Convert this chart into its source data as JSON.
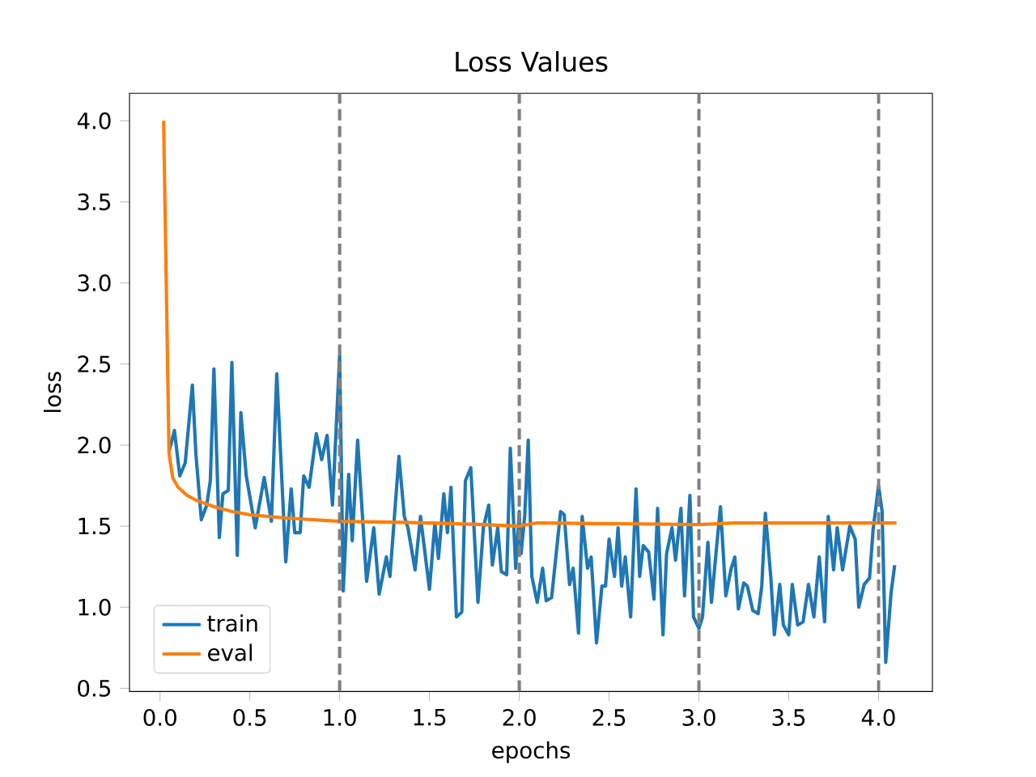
{
  "chart_data": {
    "type": "line",
    "title": "Loss Values",
    "xlabel": "epochs",
    "ylabel": "loss",
    "xlim": [
      -0.17,
      4.3
    ],
    "ylim": [
      0.48,
      4.17
    ],
    "xticks": [
      {
        "value": 0,
        "label": "0.0"
      },
      {
        "value": 0.5,
        "label": "0.5"
      },
      {
        "value": 1,
        "label": "1.0"
      },
      {
        "value": 1.5,
        "label": "1.5"
      },
      {
        "value": 2,
        "label": "2.0"
      },
      {
        "value": 2.5,
        "label": "2.5"
      },
      {
        "value": 3,
        "label": "3.0"
      },
      {
        "value": 3.5,
        "label": "3.5"
      },
      {
        "value": 4,
        "label": "4.0"
      }
    ],
    "yticks": [
      {
        "value": 0.5,
        "label": "0.5"
      },
      {
        "value": 1,
        "label": "1.0"
      },
      {
        "value": 1.5,
        "label": "1.5"
      },
      {
        "value": 2,
        "label": "2.0"
      },
      {
        "value": 2.5,
        "label": "2.5"
      },
      {
        "value": 3,
        "label": "3.0"
      },
      {
        "value": 3.5,
        "label": "3.5"
      },
      {
        "value": 4,
        "label": "4.0"
      }
    ],
    "legend": "bottom left",
    "line_style": "solid",
    "ref_lines": [
      {
        "axis": "x",
        "value": 1,
        "color": "#808080",
        "line_style": "dashed"
      },
      {
        "axis": "x",
        "value": 2,
        "color": "#808080",
        "line_style": "dashed"
      },
      {
        "axis": "x",
        "value": 3,
        "color": "#808080",
        "line_style": "dashed"
      },
      {
        "axis": "x",
        "value": 4,
        "color": "#808080",
        "line_style": "dashed"
      }
    ],
    "series": [
      {
        "name": "train",
        "color": "#1f77b4",
        "x": [
          0.05,
          0.08,
          0.11,
          0.14,
          0.18,
          0.2,
          0.23,
          0.26,
          0.28,
          0.3,
          0.33,
          0.35,
          0.38,
          0.4,
          0.43,
          0.45,
          0.48,
          0.53,
          0.58,
          0.62,
          0.65,
          0.7,
          0.73,
          0.75,
          0.78,
          0.8,
          0.83,
          0.87,
          0.9,
          0.93,
          0.96,
          1.0,
          1.02,
          1.05,
          1.07,
          1.1,
          1.15,
          1.19,
          1.22,
          1.26,
          1.28,
          1.33,
          1.36,
          1.38,
          1.42,
          1.45,
          1.5,
          1.53,
          1.55,
          1.58,
          1.6,
          1.62,
          1.65,
          1.68,
          1.7,
          1.73,
          1.77,
          1.8,
          1.83,
          1.85,
          1.88,
          1.9,
          1.93,
          1.95,
          1.98,
          2.0,
          2.01,
          2.03,
          2.05,
          2.07,
          2.1,
          2.13,
          2.15,
          2.18,
          2.23,
          2.25,
          2.28,
          2.3,
          2.33,
          2.35,
          2.38,
          2.4,
          2.43,
          2.46,
          2.48,
          2.5,
          2.53,
          2.55,
          2.57,
          2.59,
          2.62,
          2.65,
          2.67,
          2.69,
          2.72,
          2.75,
          2.77,
          2.8,
          2.82,
          2.85,
          2.87,
          2.9,
          2.92,
          2.95,
          2.97,
          3.0,
          3.02,
          3.05,
          3.07,
          3.1,
          3.12,
          3.15,
          3.18,
          3.2,
          3.22,
          3.25,
          3.27,
          3.3,
          3.33,
          3.35,
          3.37,
          3.4,
          3.42,
          3.45,
          3.47,
          3.5,
          3.52,
          3.55,
          3.58,
          3.61,
          3.64,
          3.67,
          3.7,
          3.72,
          3.75,
          3.77,
          3.8,
          3.84,
          3.87,
          3.89,
          3.92,
          3.95,
          3.97,
          4.0,
          4.02,
          4.04,
          4.07,
          4.09
        ],
        "values": [
          1.96,
          2.09,
          1.81,
          1.89,
          2.37,
          1.94,
          1.54,
          1.63,
          1.78,
          2.47,
          1.43,
          1.7,
          1.72,
          2.51,
          1.32,
          2.2,
          1.81,
          1.49,
          1.8,
          1.53,
          2.44,
          1.28,
          1.73,
          1.46,
          1.46,
          1.81,
          1.74,
          2.07,
          1.91,
          2.06,
          1.63,
          2.55,
          1.1,
          1.82,
          1.41,
          2.03,
          1.16,
          1.49,
          1.08,
          1.31,
          1.19,
          1.93,
          1.56,
          1.49,
          1.23,
          1.56,
          1.11,
          1.52,
          1.3,
          1.7,
          1.46,
          1.74,
          0.94,
          0.97,
          1.78,
          1.86,
          1.03,
          1.49,
          1.63,
          1.26,
          1.49,
          1.22,
          1.2,
          1.98,
          1.24,
          1.59,
          1.33,
          1.56,
          2.03,
          1.19,
          1.03,
          1.24,
          1.04,
          1.06,
          1.59,
          1.57,
          1.14,
          1.24,
          0.84,
          1.56,
          1.24,
          1.31,
          0.78,
          1.13,
          1.13,
          1.42,
          1.19,
          1.49,
          1.13,
          1.31,
          0.94,
          1.73,
          1.19,
          1.38,
          1.34,
          1.05,
          1.61,
          0.83,
          1.33,
          1.49,
          1.29,
          1.61,
          1.07,
          1.69,
          0.94,
          0.87,
          0.94,
          1.4,
          1.03,
          1.39,
          1.62,
          1.07,
          1.24,
          1.31,
          0.99,
          1.15,
          1.13,
          0.98,
          0.96,
          1.13,
          1.58,
          1.19,
          0.83,
          1.14,
          0.89,
          0.83,
          1.14,
          0.89,
          0.91,
          1.14,
          0.94,
          1.31,
          0.91,
          1.56,
          1.23,
          1.49,
          1.23,
          1.5,
          1.42,
          1.0,
          1.14,
          1.18,
          1.48,
          1.75,
          1.59,
          0.66,
          1.09,
          1.26
        ]
      },
      {
        "name": "eval",
        "color": "#ff7f0e",
        "x": [
          0.02,
          0.05,
          0.07,
          0.1,
          0.15,
          0.2,
          0.3,
          0.4,
          0.5,
          0.7,
          1.0,
          1.5,
          1.8,
          2.0,
          2.1,
          3.0,
          3.2,
          4.0,
          4.1
        ],
        "values": [
          4.0,
          1.95,
          1.8,
          1.74,
          1.69,
          1.66,
          1.62,
          1.59,
          1.57,
          1.55,
          1.53,
          1.52,
          1.51,
          1.5,
          1.52,
          1.51,
          1.52,
          1.52,
          1.52
        ]
      }
    ]
  }
}
